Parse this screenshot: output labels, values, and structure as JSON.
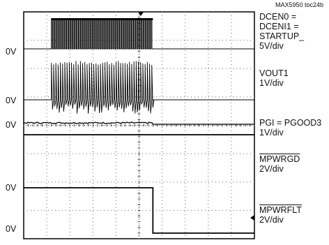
{
  "figure_tag": "MAX5950 toc24b",
  "zero_labels": [
    "0V",
    "0V",
    "0V",
    "0V",
    "0V"
  ],
  "channels": [
    {
      "lines": [
        "DCEN0 =",
        "DCENI1 =",
        "STARTUP_",
        "5V/div"
      ],
      "overline": []
    },
    {
      "lines": [
        "VOUT1",
        "1V/div"
      ],
      "overline": []
    },
    {
      "lines": [
        "PGI = PGOOD3",
        "1V/div"
      ],
      "overline": []
    },
    {
      "lines": [
        "MPWRGD",
        "2V/div"
      ],
      "overline": [
        0
      ]
    },
    {
      "lines": [
        "MPWRFLT",
        "2V/div"
      ],
      "overline": [
        0
      ]
    }
  ],
  "chart_data": {
    "type": "line",
    "title": "",
    "x_divisions": 10,
    "y_divisions": 8,
    "grid": true,
    "event_time_div": 5.6,
    "series": [
      {
        "name": "DCEN0 = DCENI1 = STARTUP_",
        "description": "square-wave burst ~5V from 1.2 div until event, then 0V"
      },
      {
        "name": "VOUT1",
        "description": "oscillating spikes ~2V during burst, then steady near 0V"
      },
      {
        "name": "PGI = PGOOD3",
        "description": "small noise during burst, then flat at 0V"
      },
      {
        "name": "MPWRGD",
        "description": "flat at 0V"
      },
      {
        "name": "MPWRFLT",
        "description": "high until event, then falls to 0V"
      }
    ]
  }
}
